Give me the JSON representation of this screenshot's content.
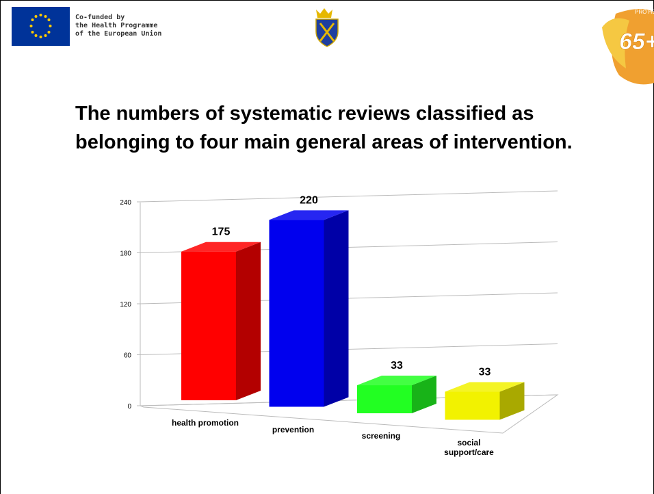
{
  "header": {
    "funding_lines": [
      "Co-funded by",
      "the Health Programme",
      "of the European Union"
    ],
    "logo_top": "PRO HEALTH",
    "logo_main": "65+"
  },
  "slide_title": [
    "The numbers of systematic reviews classified as",
    "belonging to four main general areas of intervention."
  ],
  "chart_data": {
    "type": "bar3d",
    "categories": [
      "health promotion",
      "prevention",
      "screening",
      "social support/care"
    ],
    "values": [
      175,
      220,
      33,
      33
    ],
    "colors": [
      "#ff0000",
      "#0000ee",
      "#22ff22",
      "#f2f200"
    ],
    "ylim": [
      0,
      240
    ],
    "yticks": [
      0,
      60,
      120,
      180,
      240
    ],
    "grid": true
  }
}
